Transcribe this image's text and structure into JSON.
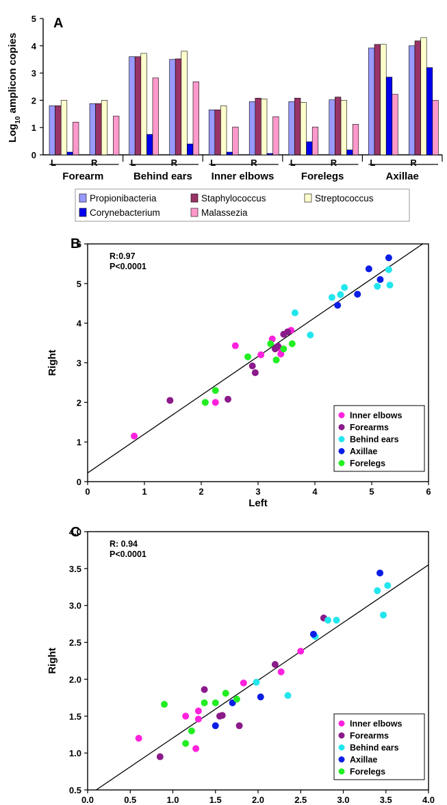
{
  "colors": {
    "Propionibacteria": "#9999ff",
    "Staphylococcus": "#993366",
    "Streptococcus": "#ffffcc",
    "Corynebacterium": "#0000ee",
    "Malassezia": "#ff99cc",
    "Inner elbows": "#ff22dd",
    "Forearms": "#8b1a8b",
    "Behind ears": "#22e6ee",
    "Axillae": "#0b1ee6",
    "Forelegs": "#22ee22"
  },
  "chart_data": [
    {
      "panel": "A",
      "type": "bar",
      "ylabel_prefix": "Log",
      "ylabel_sub": "10",
      "ylabel_suffix": " amplicon copies",
      "ylim": [
        0,
        5
      ],
      "yticks": [
        0,
        1,
        2,
        3,
        4,
        5
      ],
      "groups": [
        {
          "name": "Forearm",
          "sides": [
            {
              "label": "L",
              "values": [
                1.8,
                1.8,
                2.0,
                0.1,
                1.2
              ]
            },
            {
              "label": "R",
              "values": [
                1.88,
                1.88,
                2.0,
                0.0,
                1.42
              ]
            }
          ]
        },
        {
          "name": "Behind ears",
          "sides": [
            {
              "label": "L",
              "values": [
                3.6,
                3.6,
                3.72,
                0.75,
                2.82
              ]
            },
            {
              "label": "R",
              "values": [
                3.5,
                3.52,
                3.8,
                0.4,
                2.68
              ]
            }
          ]
        },
        {
          "name": "Inner elbows",
          "sides": [
            {
              "label": "L",
              "values": [
                1.65,
                1.65,
                1.8,
                0.1,
                1.02
              ]
            },
            {
              "label": "R",
              "values": [
                1.95,
                2.08,
                2.05,
                0.05,
                1.4
              ]
            }
          ]
        },
        {
          "name": "Forelegs",
          "sides": [
            {
              "label": "L",
              "values": [
                1.95,
                2.08,
                1.92,
                0.48,
                1.02
              ]
            },
            {
              "label": "R",
              "values": [
                2.02,
                2.12,
                2.0,
                0.18,
                1.12
              ]
            }
          ]
        },
        {
          "name": "Axillae",
          "sides": [
            {
              "label": "L",
              "values": [
                3.92,
                4.05,
                4.05,
                2.85,
                2.22
              ]
            },
            {
              "label": "R",
              "values": [
                4.0,
                4.18,
                4.3,
                3.2,
                2.0
              ]
            }
          ]
        }
      ],
      "series": [
        "Propionibacteria",
        "Staphylococcus",
        "Streptococcus",
        "Corynebacterium",
        "Malassezia"
      ],
      "legend": [
        "Propionibacteria",
        "Staphylococcus",
        "Streptococcus",
        "Corynebacterium",
        "Malassezia"
      ]
    },
    {
      "panel": "B",
      "type": "scatter",
      "xlabel": "Left",
      "ylabel": "Right",
      "xlim": [
        0,
        6
      ],
      "ylim": [
        0,
        6
      ],
      "xticks": [
        0,
        1,
        2,
        3,
        4,
        5,
        6
      ],
      "yticks": [
        0,
        1,
        2,
        3,
        4,
        5,
        6
      ],
      "stat_r": "R:0.97",
      "stat_p": "P<0.0001",
      "fit_line": [
        [
          0,
          0.22
        ],
        [
          6,
          6.1
        ]
      ],
      "legend": [
        "Inner elbows",
        "Forearms",
        "Behind ears",
        "Axillae",
        "Forelegs"
      ],
      "series": [
        {
          "name": "Inner elbows",
          "points": [
            [
              0.82,
              1.15
            ],
            [
              2.25,
              2.0
            ],
            [
              2.6,
              3.43
            ],
            [
              3.05,
              3.2
            ],
            [
              3.25,
              3.6
            ],
            [
              3.4,
              3.35
            ],
            [
              3.58,
              3.82
            ],
            [
              3.4,
              3.22
            ]
          ]
        },
        {
          "name": "Forearms",
          "points": [
            [
              1.45,
              2.05
            ],
            [
              2.47,
              2.08
            ],
            [
              2.9,
              2.92
            ],
            [
              2.95,
              2.75
            ],
            [
              3.3,
              3.35
            ],
            [
              3.35,
              3.42
            ],
            [
              3.45,
              3.72
            ],
            [
              3.52,
              3.78
            ]
          ]
        },
        {
          "name": "Behind ears",
          "points": [
            [
              3.65,
              4.26
            ],
            [
              3.92,
              3.7
            ],
            [
              4.3,
              4.65
            ],
            [
              4.45,
              4.72
            ],
            [
              4.52,
              4.9
            ],
            [
              5.1,
              4.93
            ],
            [
              5.3,
              5.35
            ],
            [
              5.32,
              4.96
            ]
          ]
        },
        {
          "name": "Axillae",
          "points": [
            [
              4.4,
              4.45
            ],
            [
              4.75,
              4.73
            ],
            [
              4.95,
              5.37
            ],
            [
              5.15,
              5.1
            ],
            [
              5.3,
              5.65
            ]
          ]
        },
        {
          "name": "Forelegs",
          "points": [
            [
              2.07,
              2.0
            ],
            [
              2.25,
              2.3
            ],
            [
              2.82,
              3.15
            ],
            [
              3.22,
              3.48
            ],
            [
              3.32,
              3.07
            ],
            [
              3.45,
              3.35
            ],
            [
              3.6,
              3.48
            ]
          ]
        }
      ]
    },
    {
      "panel": "C",
      "type": "scatter",
      "xlabel": "Left",
      "ylabel": "Right",
      "xlim": [
        0,
        4
      ],
      "ylim": [
        0.5,
        4
      ],
      "xticks": [
        "0.0",
        "0.5",
        "1.0",
        "1.5",
        "2.0",
        "2.5",
        "3.0",
        "3.5",
        "4.0"
      ],
      "yticks": [
        "0.5",
        "1.0",
        "1.5",
        "2.0",
        "2.5",
        "3.0",
        "3.5",
        "4.0"
      ],
      "stat_r": "R: 0.94",
      "stat_p": "P<0.0001",
      "fit_line": [
        [
          0.1,
          0.5
        ],
        [
          4.0,
          3.55
        ]
      ],
      "legend": [
        "Inner elbows",
        "Forearms",
        "Behind ears",
        "Axillae",
        "Forelegs"
      ],
      "series": [
        {
          "name": "Inner elbows",
          "points": [
            [
              0.6,
              1.2
            ],
            [
              1.15,
              1.5
            ],
            [
              1.27,
              1.06
            ],
            [
              1.3,
              1.46
            ],
            [
              1.3,
              1.57
            ],
            [
              1.83,
              1.95
            ],
            [
              2.27,
              2.1
            ],
            [
              2.5,
              2.38
            ]
          ]
        },
        {
          "name": "Forearms",
          "points": [
            [
              0.85,
              0.95
            ],
            [
              1.37,
              1.86
            ],
            [
              1.55,
              1.5
            ],
            [
              1.58,
              1.51
            ],
            [
              1.78,
              1.37
            ],
            [
              2.2,
              2.2
            ],
            [
              2.77,
              2.83
            ]
          ]
        },
        {
          "name": "Behind ears",
          "points": [
            [
              1.98,
              1.96
            ],
            [
              2.35,
              1.78
            ],
            [
              2.67,
              2.58
            ],
            [
              2.82,
              2.8
            ],
            [
              2.92,
              2.8
            ],
            [
              3.4,
              3.2
            ],
            [
              3.47,
              2.87
            ],
            [
              3.52,
              3.27
            ]
          ]
        },
        {
          "name": "Axillae",
          "points": [
            [
              1.5,
              1.37
            ],
            [
              1.7,
              1.68
            ],
            [
              2.03,
              1.76
            ],
            [
              2.65,
              2.61
            ],
            [
              3.43,
              3.44
            ]
          ]
        },
        {
          "name": "Forelegs",
          "points": [
            [
              0.9,
              1.66
            ],
            [
              1.15,
              1.13
            ],
            [
              1.22,
              1.3
            ],
            [
              1.37,
              1.68
            ],
            [
              1.5,
              1.68
            ],
            [
              1.62,
              1.81
            ],
            [
              1.75,
              1.73
            ]
          ]
        }
      ]
    }
  ]
}
